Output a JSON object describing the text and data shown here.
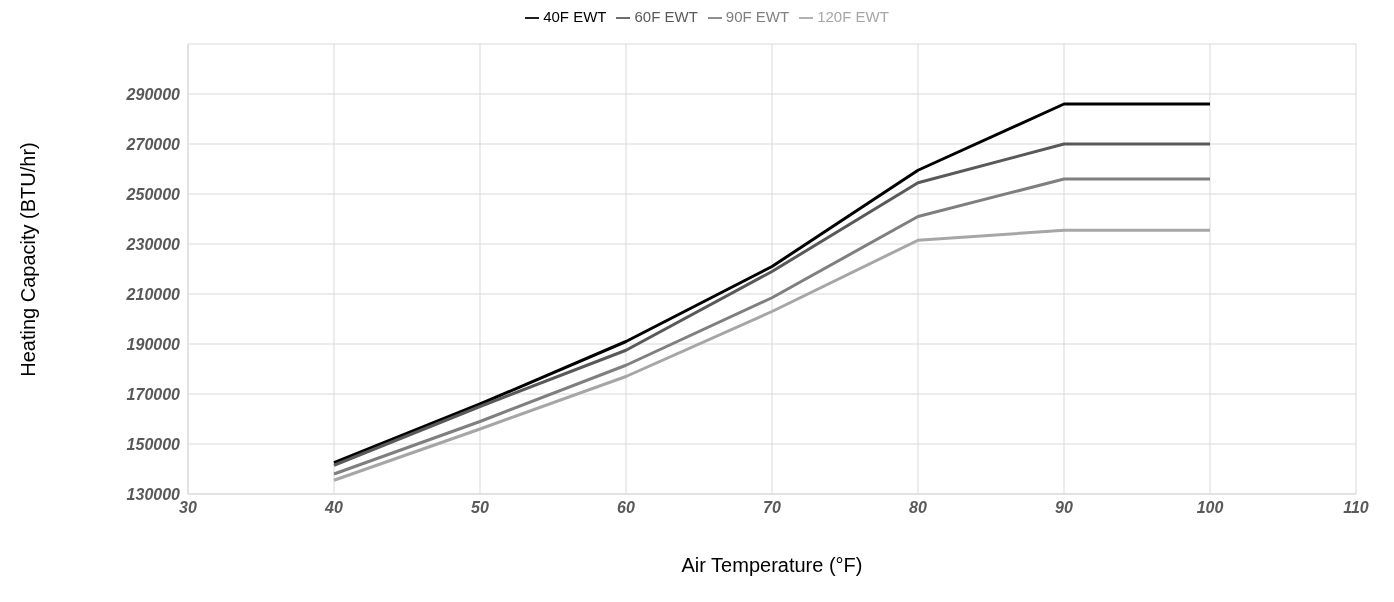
{
  "chart_data": {
    "type": "line",
    "xlabel": "Air Temperature (°F)",
    "ylabel": "Heating Capacity (BTU/hr)",
    "x": [
      40,
      50,
      60,
      70,
      80,
      90,
      100
    ],
    "series": [
      {
        "name": "40F EWT",
        "color": "#000000",
        "values": [
          142500,
          166000,
          191000,
          221000,
          259500,
          286000,
          286000
        ]
      },
      {
        "name": "60F EWT",
        "color": "#595959",
        "values": [
          141500,
          165000,
          187500,
          219000,
          254500,
          270000,
          270000
        ]
      },
      {
        "name": "90F EWT",
        "color": "#7f7f7f",
        "values": [
          138000,
          159000,
          181500,
          208500,
          241000,
          256000,
          256000
        ]
      },
      {
        "name": "120F EWT",
        "color": "#a6a6a6",
        "values": [
          135500,
          156000,
          177000,
          203000,
          231500,
          235500,
          235500
        ]
      }
    ],
    "xlim": [
      30,
      110
    ],
    "xticks": [
      30,
      40,
      50,
      60,
      70,
      80,
      90,
      100,
      110
    ],
    "ylim": [
      130000,
      310000
    ],
    "yticks": [
      130000,
      150000,
      170000,
      190000,
      210000,
      230000,
      250000,
      270000,
      290000,
      {
        "value": 310000,
        "label": null
      }
    ],
    "grid": true,
    "legend": "top",
    "marker": "none",
    "line_style": "solid"
  }
}
